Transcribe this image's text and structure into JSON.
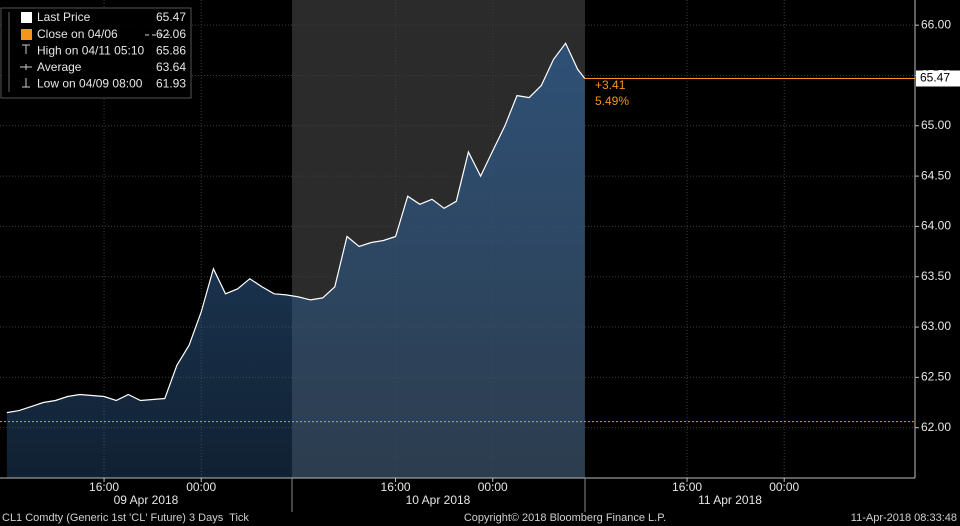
{
  "chart_data": {
    "type": "line",
    "series": [
      {
        "name": "Last Price",
        "color": "#ffffff",
        "x": [
          "2018-04-09 08:00",
          "2018-04-09 09:00",
          "2018-04-09 10:00",
          "2018-04-09 11:00",
          "2018-04-09 12:00",
          "2018-04-09 13:00",
          "2018-04-09 14:00",
          "2018-04-09 15:00",
          "2018-04-09 16:00",
          "2018-04-09 17:00",
          "2018-04-09 18:00",
          "2018-04-09 19:00",
          "2018-04-09 20:00",
          "2018-04-09 21:00",
          "2018-04-09 22:00",
          "2018-04-09 23:00",
          "2018-04-10 00:00",
          "2018-04-10 01:00",
          "2018-04-10 02:00",
          "2018-04-10 03:00",
          "2018-04-10 04:00",
          "2018-04-10 05:00",
          "2018-04-10 06:00",
          "2018-04-10 07:00",
          "2018-04-10 08:00",
          "2018-04-10 09:00",
          "2018-04-10 10:00",
          "2018-04-10 11:00",
          "2018-04-10 12:00",
          "2018-04-10 13:00",
          "2018-04-10 14:00",
          "2018-04-10 15:00",
          "2018-04-10 16:00",
          "2018-04-10 17:00",
          "2018-04-10 18:00",
          "2018-04-10 19:00",
          "2018-04-10 20:00",
          "2018-04-10 21:00",
          "2018-04-10 22:00",
          "2018-04-10 23:00",
          "2018-04-11 00:00",
          "2018-04-11 01:00",
          "2018-04-11 02:00",
          "2018-04-11 03:00",
          "2018-04-11 04:00",
          "2018-04-11 05:00",
          "2018-04-11 06:00",
          "2018-04-11 07:00",
          "2018-04-11 07:35"
        ],
        "values": [
          62.15,
          62.17,
          62.21,
          62.25,
          62.27,
          62.31,
          62.33,
          62.32,
          62.31,
          62.27,
          62.33,
          62.27,
          62.28,
          62.29,
          62.62,
          62.82,
          63.15,
          63.58,
          63.33,
          63.38,
          63.48,
          63.4,
          63.33,
          63.32,
          63.3,
          63.27,
          63.29,
          63.4,
          63.9,
          63.8,
          63.84,
          63.86,
          63.9,
          64.3,
          64.22,
          64.27,
          64.18,
          64.25,
          64.74,
          64.5,
          64.75,
          65.0,
          65.3,
          65.28,
          65.4,
          65.66,
          65.82,
          65.56,
          65.47
        ]
      }
    ],
    "area_color": "#2f5d8f",
    "last_price": 65.47,
    "change": "+3.41",
    "change_pct": "5.49%",
    "stats": [
      {
        "label": "Close on 04/06",
        "value": 62.06,
        "color": "#f7941d"
      },
      {
        "label": "High on 04/11 05:10",
        "value": 65.86
      },
      {
        "label": "Average",
        "value": 63.64
      },
      {
        "label": "Low on 04/09 08:00",
        "value": 61.93
      }
    ],
    "xlim": [
      "2018-04-09 07:26",
      "2018-04-12 10:46"
    ],
    "xticks": [
      {
        "value": "2018-04-09 16:00",
        "label": "16:00"
      },
      {
        "value": "2018-04-10 00:00",
        "label": "00:00"
      },
      {
        "value": "2018-04-10 16:00",
        "label": "16:00"
      },
      {
        "value": "2018-04-11 00:00",
        "label": "00:00"
      },
      {
        "value": "2018-04-11 16:00",
        "label": "16:00"
      },
      {
        "value": "2018-04-12 00:00",
        "label": "00:00"
      }
    ],
    "x_group_labels": [
      "09 Apr 2018",
      "10 Apr 2018",
      "11 Apr 2018"
    ],
    "ylim": [
      61.5,
      66.25
    ],
    "yticks": [
      {
        "value": 62,
        "label": "62.00"
      },
      {
        "value": 62.5,
        "label": "62.50"
      },
      {
        "value": 63,
        "label": "63.00"
      },
      {
        "value": 63.5,
        "label": "63.50"
      },
      {
        "value": 64,
        "label": "64.00"
      },
      {
        "value": 64.5,
        "label": "64.50"
      },
      {
        "value": 65,
        "label": "65.00"
      },
      {
        "value": 65.5,
        "label": "65.50"
      },
      {
        "value": 66,
        "label": "66.00"
      }
    ],
    "grid": true,
    "footer": {
      "left": "CL1 Comdty (Generic 1st 'CL' Future) 3 Days  Tick",
      "center": "Copyright© 2018 Bloomberg Finance L.P.",
      "right": "11-Apr-2018 08:33:48"
    }
  }
}
